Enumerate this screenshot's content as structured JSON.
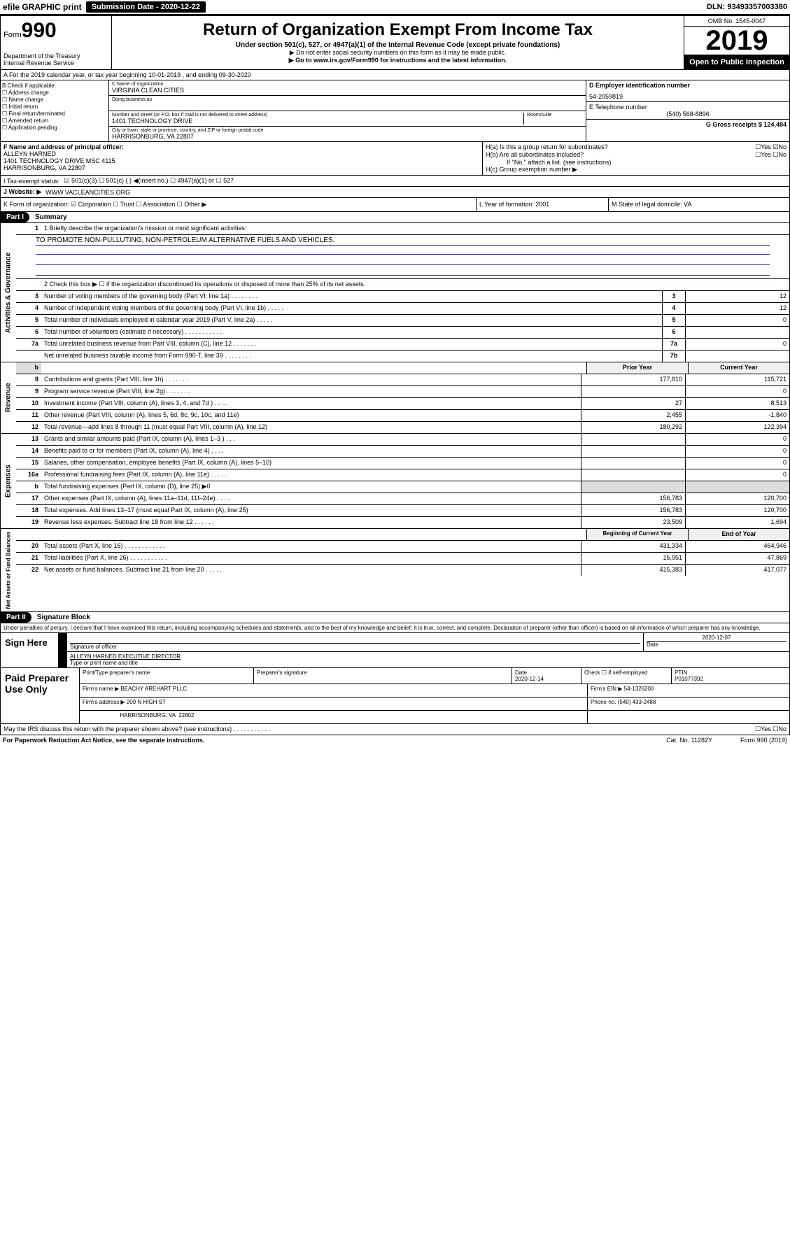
{
  "topbar": {
    "efile": "efile GRAPHIC print",
    "submission_label": "Submission Date - 2020-12-22",
    "dln": "DLN: 93493357003380"
  },
  "header": {
    "form_prefix": "Form",
    "form_no": "990",
    "dept": "Department of the Treasury\nInternal Revenue Service",
    "title": "Return of Organization Exempt From Income Tax",
    "sub": "Under section 501(c), 527, or 4947(a)(1) of the Internal Revenue Code (except private foundations)",
    "note1": "▶ Do not enter social security numbers on this form as it may be made public.",
    "note2": "▶ Go to www.irs.gov/Form990 for instructions and the latest information.",
    "omb": "OMB No. 1545-0047",
    "year": "2019",
    "open": "Open to Public Inspection"
  },
  "sectionA": "A For the 2019 calendar year, or tax year beginning 10-01-2019   , and ending 09-30-2020",
  "colB": {
    "title": "B Check if applicable:",
    "items": [
      "☐ Address change",
      "☐ Name change",
      "☐ Initial return",
      "☐ Final return/terminated",
      "☐ Amended return",
      "☐ Application pending"
    ]
  },
  "colC": {
    "name_label": "C Name of organization",
    "name": "VIRGINIA CLEAN CITIES",
    "dba_label": "Doing business as",
    "addr_label": "Number and street (or P.O. box if mail is not delivered to street address)",
    "room_label": "Room/suite",
    "addr": "1401 TECHNOLOGY DRIVE",
    "city_label": "City or town, state or province, country, and ZIP or foreign postal code",
    "city": "HARRISONBURG, VA  22807"
  },
  "colD": {
    "ein_label": "D Employer identification number",
    "ein": "54-2059819",
    "phone_label": "E Telephone number",
    "phone": "(540) 568-8896",
    "gross_label": "G Gross receipts $ 124,484"
  },
  "rowF": {
    "label": "F  Name and address of principal officer:",
    "name": "ALLEYN HARNED",
    "addr1": "1401 TECHNOLOGY DRIVE MSC 4115",
    "addr2": "HARRISONBURG, VA  22807"
  },
  "rowH": {
    "ha": "H(a)  Is this a group return for subordinates?",
    "ha_ans": "☐Yes ☑No",
    "hb": "H(b)  Are all subordinates included?",
    "hb_ans": "☐Yes ☐No",
    "hb_note": "If \"No,\" attach a list. (see instructions)",
    "hc": "H(c)  Group exemption number ▶"
  },
  "rowI": {
    "label": "I   Tax-exempt status:",
    "opts": "☑ 501(c)(3)   ☐ 501(c) (  ) ◀(insert no.)   ☐ 4947(a)(1) or   ☐ 527"
  },
  "rowJ": {
    "label": "J   Website: ▶",
    "val": "WWW.VACLEANCITIES.ORG"
  },
  "rowK": {
    "c1": "K Form of organization:  ☑ Corporation ☐ Trust ☐ Association ☐ Other ▶",
    "c2": "L Year of formation: 2001",
    "c3": "M State of legal domicile: VA"
  },
  "partI": {
    "hdr": "Part I",
    "title": "Summary"
  },
  "governance": {
    "label": "Activities & Governance",
    "line1_label": "1  Briefly describe the organization's mission or most significant activities:",
    "line1_text": "TO PROMOTE NON-PULLUTING, NON-PETROLEUM ALTERNATIVE FUELS AND VEHICLES.",
    "line2": "2   Check this box ▶ ☐  if the organization discontinued its operations or disposed of more than 25% of its net assets.",
    "rows": [
      {
        "n": "3",
        "d": "Number of voting members of the governing body (Part VI, line 1a)  .  .  .  .  .  .  .  .",
        "box": "3",
        "v": "12"
      },
      {
        "n": "4",
        "d": "Number of independent voting members of the governing body (Part VI, line 1b)  .  .  .  .  .",
        "box": "4",
        "v": "12"
      },
      {
        "n": "5",
        "d": "Total number of individuals employed in calendar year 2019 (Part V, line 2a)  .  .  .  .  .",
        "box": "5",
        "v": "0"
      },
      {
        "n": "6",
        "d": "Total number of volunteers (estimate if necessary)  .  .  .  .  .  .  .  .  .  .  .",
        "box": "6",
        "v": ""
      },
      {
        "n": "7a",
        "d": "Total unrelated business revenue from Part VIII, column (C), line 12  .  .  .  .  .  .  .",
        "box": "7a",
        "v": "0"
      },
      {
        "n": "",
        "d": "Net unrelated business taxable income from Form 990-T, line 39  .  .  .  .  .  .  .  .",
        "box": "7b",
        "v": ""
      }
    ]
  },
  "revenue": {
    "label": "Revenue",
    "hdr_prior": "Prior Year",
    "hdr_curr": "Current Year",
    "rows": [
      {
        "n": "8",
        "d": "Contributions and grants (Part VIII, line 1h)  .  .  .  .  .  .  .",
        "p": "177,810",
        "c": "115,721"
      },
      {
        "n": "9",
        "d": "Program service revenue (Part VIII, line 2g)  .  .  .  .  .  .  .",
        "p": "",
        "c": "0"
      },
      {
        "n": "10",
        "d": "Investment income (Part VIII, column (A), lines 3, 4, and 7d )  .  .  .  .",
        "p": "27",
        "c": "8,513"
      },
      {
        "n": "11",
        "d": "Other revenue (Part VIII, column (A), lines 5, 6d, 8c, 9c, 10c, and 11e)",
        "p": "2,455",
        "c": "-1,840"
      },
      {
        "n": "12",
        "d": "Total revenue—add lines 8 through 11 (must equal Part VIII, column (A), line 12)",
        "p": "180,292",
        "c": "122,394"
      }
    ]
  },
  "expenses": {
    "label": "Expenses",
    "rows": [
      {
        "n": "13",
        "d": "Grants and similar amounts paid (Part IX, column (A), lines 1–3 )  .  .  .",
        "p": "",
        "c": "0"
      },
      {
        "n": "14",
        "d": "Benefits paid to or for members (Part IX, column (A), line 4)  .  .  .  .",
        "p": "",
        "c": "0"
      },
      {
        "n": "15",
        "d": "Salaries, other compensation, employee benefits (Part IX, column (A), lines 5–10)",
        "p": "",
        "c": "0"
      },
      {
        "n": "16a",
        "d": "Professional fundraising fees (Part IX, column (A), line 11e)  .  .  .  .  .",
        "p": "",
        "c": "0"
      },
      {
        "n": "b",
        "d": "Total fundraising expenses (Part IX, column (D), line 25) ▶0",
        "p": "—",
        "c": "—"
      },
      {
        "n": "17",
        "d": "Other expenses (Part IX, column (A), lines 11a–11d, 11f–24e)  .  .  .  .",
        "p": "156,783",
        "c": "120,700"
      },
      {
        "n": "18",
        "d": "Total expenses. Add lines 13–17 (must equal Part IX, column (A), line 25)",
        "p": "156,783",
        "c": "120,700"
      },
      {
        "n": "19",
        "d": "Revenue less expenses. Subtract line 18 from line 12  .  .  .  .  .  .",
        "p": "23,509",
        "c": "1,694"
      }
    ]
  },
  "netassets": {
    "label": "Net Assets or Fund Balances",
    "hdr_prior": "Beginning of Current Year",
    "hdr_curr": "End of Year",
    "rows": [
      {
        "n": "20",
        "d": "Total assets (Part X, line 16)  .  .  .  .  .  .  .  .  .  .  .  .",
        "p": "431,334",
        "c": "464,946"
      },
      {
        "n": "21",
        "d": "Total liabilities (Part X, line 26)  .  .  .  .  .  .  .  .  .  .  .",
        "p": "15,951",
        "c": "47,869"
      },
      {
        "n": "22",
        "d": "Net assets or fund balances. Subtract line 21 from line 20  .  .  .  .  .",
        "p": "415,383",
        "c": "417,077"
      }
    ]
  },
  "partII": {
    "hdr": "Part II",
    "title": "Signature Block"
  },
  "perjury": "Under penalties of perjury, I declare that I have examined this return, including accompanying schedules and statements, and to the best of my knowledge and belief, it is true, correct, and complete. Declaration of preparer (other than officer) is based on all information of which preparer has any knowledge.",
  "sign": {
    "label": "Sign Here",
    "sig_label": "Signature of officer",
    "date": "2020-12-07",
    "date_label": "Date",
    "name": "ALLEYN HARNED  EXECUTIVE DIRECTOR",
    "name_label": "Type or print name and title"
  },
  "paid": {
    "label": "Paid Preparer Use Only",
    "r1": {
      "c1": "Print/Type preparer's name",
      "c2": "Preparer's signature",
      "c3": "Date\n2020-12-14",
      "c4": "Check ☐ if self-employed",
      "c5": "PTIN\nP01077392"
    },
    "r2": {
      "c1": "Firm's name    ▶ BEACHY AREHART PLLC",
      "c5": "Firm's EIN ▶ 54-1326200"
    },
    "r3": {
      "c1": "Firm's address ▶ 209 N HIGH ST",
      "c5": "Phone no. (540) 433-2488"
    },
    "r3b": {
      "c1": "                        HARRISONBURG, VA  22802"
    }
  },
  "footer": {
    "q": "May the IRS discuss this return with the preparer shown above? (see instructions)  .  .  .  .  .  .  .  .  .  .  .",
    "a": "☐Yes ☐No",
    "notice": "For Paperwork Reduction Act Notice, see the separate instructions.",
    "cat": "Cat. No. 11282Y",
    "form": "Form 990 (2019)"
  }
}
